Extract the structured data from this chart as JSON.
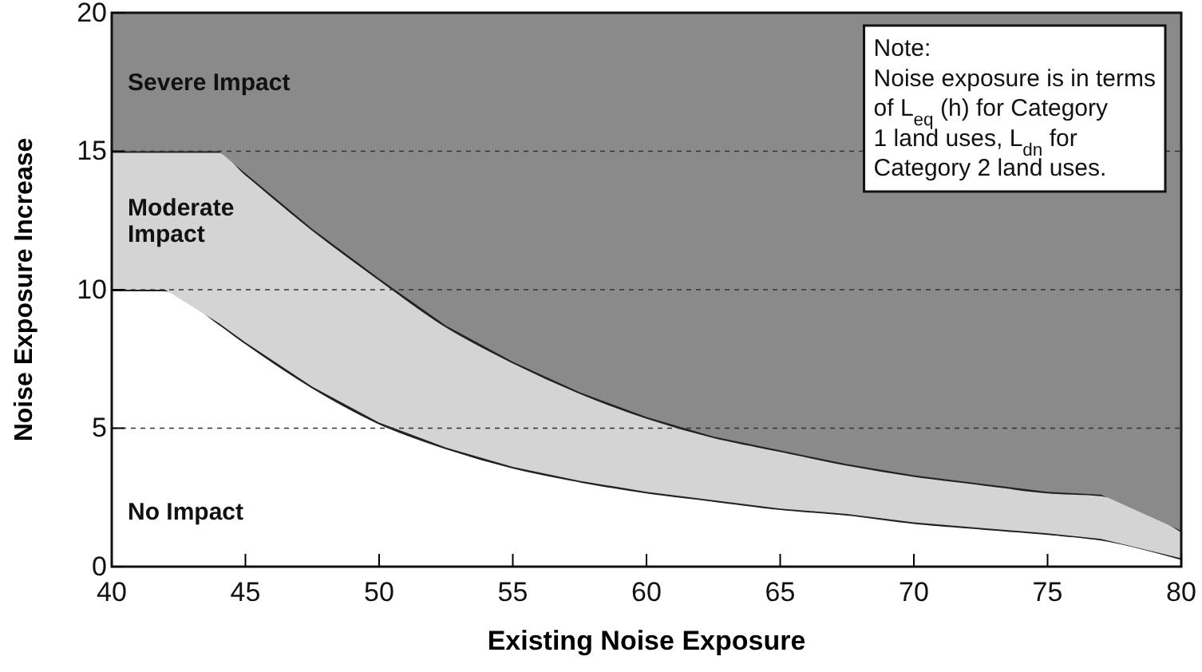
{
  "chart_data": {
    "type": "area",
    "stacked": true,
    "xlabel": "Existing Noise Exposure",
    "ylabel": "Noise Exposure Increase",
    "x": [
      40,
      42,
      44,
      45,
      47.5,
      50,
      52.5,
      55,
      57.5,
      60,
      62.5,
      65,
      67.5,
      70,
      72.5,
      75,
      77,
      80
    ],
    "xlim": [
      40,
      80
    ],
    "xticks": [
      40,
      45,
      50,
      55,
      60,
      65,
      70,
      75,
      80
    ],
    "ylim": [
      0,
      20
    ],
    "yticks": [
      0,
      5,
      10,
      15,
      20
    ],
    "grid": "y",
    "series": [
      {
        "name": "No Impact",
        "color": "#ffffff",
        "values": [
          10,
          10,
          8.8,
          8.1,
          6.5,
          5.2,
          4.3,
          3.6,
          3.1,
          2.7,
          2.4,
          2.1,
          1.9,
          1.6,
          1.4,
          1.2,
          1.0,
          0.3
        ]
      },
      {
        "name": "Moderate Impact",
        "color": "#d4d4d4",
        "values": [
          5,
          5,
          6.2,
          6.1,
          5.7,
          5.2,
          4.4,
          3.8,
          3.2,
          2.7,
          2.3,
          2.1,
          1.8,
          1.7,
          1.6,
          1.5,
          1.6,
          1.0
        ]
      },
      {
        "name": "Severe Impact",
        "color": "#8a8a8a",
        "values": [
          5,
          5,
          5,
          5.8,
          7.8,
          9.6,
          11.3,
          12.6,
          13.7,
          14.6,
          15.3,
          15.8,
          16.3,
          16.7,
          17,
          17.3,
          17.4,
          18.7
        ]
      }
    ],
    "annotations": [
      "Note:\nNoise exposure is in terms\nof L$_{eq}$ (h) for Category\n1 land uses, L$_{dn}$ for\nCategory 2 land uses."
    ]
  }
}
